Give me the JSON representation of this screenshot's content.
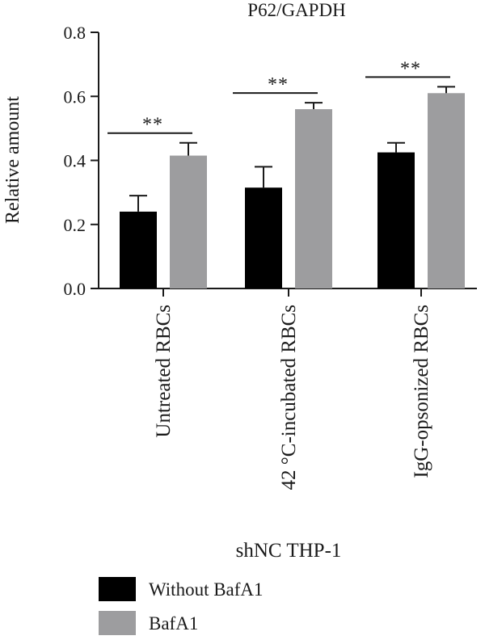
{
  "chart_data": {
    "type": "bar",
    "title": "P62/GAPDH",
    "xlabel": "shNC THP-1",
    "ylabel": "Relative amount",
    "ylim": [
      0,
      0.8
    ],
    "yticks": [
      "0.0",
      "0.2",
      "0.4",
      "0.6",
      "0.8"
    ],
    "ytick_values": [
      0,
      0.2,
      0.4,
      0.6,
      0.8
    ],
    "categories": [
      "Untreated RBCs",
      "42 °C-incubated RBCs",
      "IgG-opsonized RBCs"
    ],
    "series": [
      {
        "name": "Without BafA1",
        "color": "#000000",
        "values": [
          0.24,
          0.315,
          0.425
        ],
        "errors": [
          0.05,
          0.065,
          0.03
        ]
      },
      {
        "name": "BafA1",
        "color": "#9d9d9f",
        "values": [
          0.415,
          0.56,
          0.61
        ],
        "errors": [
          0.04,
          0.02,
          0.02
        ]
      }
    ],
    "significance": [
      "**",
      "**",
      "**"
    ],
    "legend_position": "bottom-left",
    "grid": false
  }
}
